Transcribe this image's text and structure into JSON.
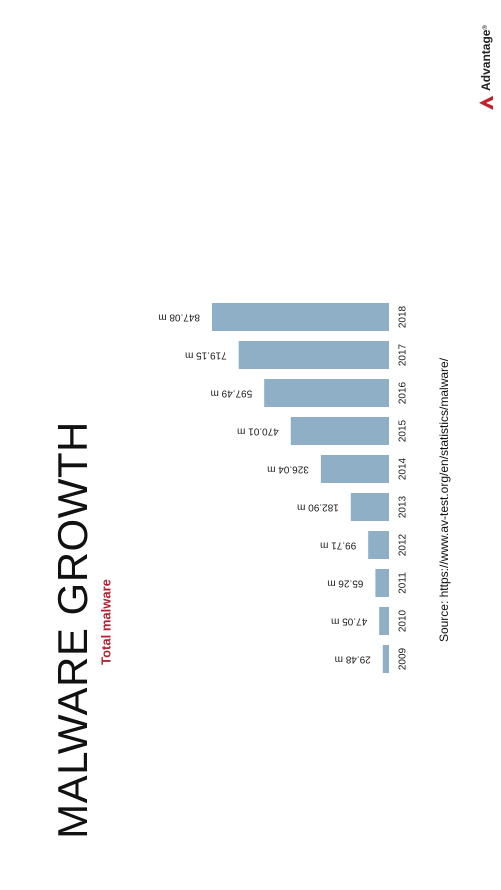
{
  "title": "MALWARE GROWTH",
  "subtitle": "Total malware",
  "source": "Source: https://www.av-test.org/en/statistics/malware/",
  "logo": {
    "text": "Advantage",
    "mark": "®"
  },
  "colors": {
    "bar": "#8eafc6",
    "accent": "#b22234",
    "text": "#1a1a1a",
    "logo_red": "#c0232b"
  },
  "chart_data": {
    "type": "bar",
    "orientation": "rotated",
    "categories": [
      "2009",
      "2010",
      "2011",
      "2012",
      "2013",
      "2014",
      "2015",
      "2016",
      "2017",
      "2018"
    ],
    "values": [
      29.48,
      47.05,
      65.26,
      99.71,
      182.9,
      326.04,
      470.01,
      597.49,
      719.15,
      847.08
    ],
    "labels": [
      "29.48 m",
      "47.05 m",
      "65.26 m",
      "99.71 m",
      "182.90 m",
      "326.04 m",
      "470.01 m",
      "597.49 m",
      "719.15 m",
      "847.08 m"
    ],
    "title": "MALWARE GROWTH",
    "subtitle": "Total malware",
    "unit": "m",
    "ylim": [
      0,
      847.08
    ]
  }
}
